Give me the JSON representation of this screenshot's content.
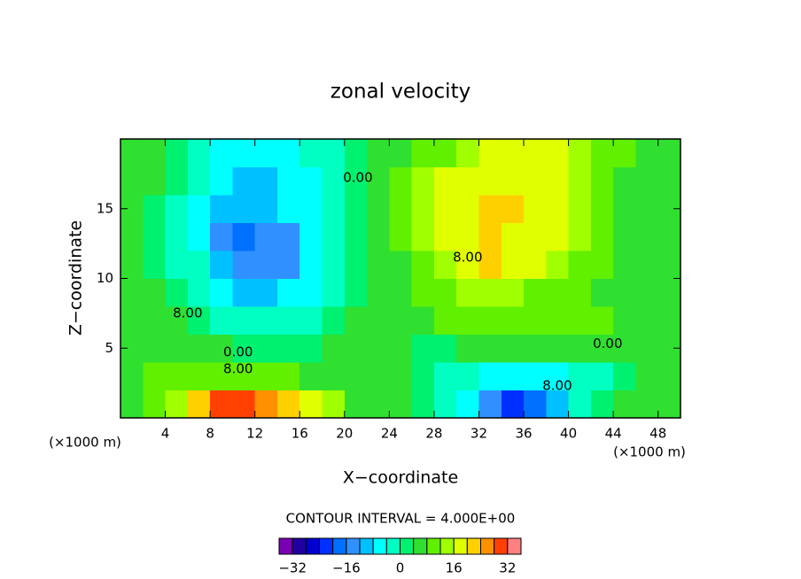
{
  "chart_data": {
    "type": "contour",
    "title": "zonal velocity",
    "xlabel": "X−coordinate",
    "ylabel": "Z−coordinate",
    "x_unit_label": "(×1000 m)",
    "xlim": [
      0,
      50
    ],
    "ylim": [
      0,
      20
    ],
    "xticks": [
      4,
      8,
      12,
      16,
      20,
      24,
      28,
      32,
      36,
      40,
      44,
      48
    ],
    "yticks": [
      5,
      10,
      15
    ],
    "x": [
      1,
      3,
      5,
      7,
      9,
      11,
      13,
      15,
      17,
      19,
      21,
      23,
      25,
      27,
      29,
      31,
      33,
      35,
      37,
      39,
      41,
      43,
      45,
      47,
      49
    ],
    "y": [
      1,
      3,
      5,
      7,
      9,
      11,
      13,
      15,
      17,
      19
    ],
    "z": [
      [
        6,
        10,
        14,
        22,
        28,
        30,
        24,
        22,
        18,
        12,
        6,
        4,
        4,
        2,
        -2,
        -8,
        -14,
        -24,
        -20,
        -10,
        -4,
        0,
        4,
        4,
        4
      ],
      [
        6,
        8,
        10,
        10,
        10,
        10,
        10,
        8,
        6,
        6,
        4,
        4,
        4,
        0,
        -2,
        -4,
        -6,
        -8,
        -8,
        -6,
        -4,
        -2,
        2,
        4,
        4
      ],
      [
        4,
        4,
        6,
        6,
        4,
        2,
        2,
        2,
        2,
        4,
        4,
        6,
        4,
        2,
        2,
        4,
        6,
        6,
        4,
        4,
        4,
        6,
        4,
        4,
        6
      ],
      [
        4,
        4,
        4,
        2,
        -2,
        -4,
        -4,
        -2,
        -2,
        0,
        4,
        4,
        6,
        6,
        8,
        8,
        8,
        8,
        8,
        8,
        8,
        8,
        6,
        6,
        6
      ],
      [
        4,
        4,
        2,
        -2,
        -6,
        -10,
        -10,
        -8,
        -6,
        -2,
        2,
        4,
        6,
        8,
        10,
        12,
        12,
        12,
        10,
        10,
        8,
        6,
        6,
        6,
        6
      ],
      [
        4,
        2,
        -2,
        -4,
        -10,
        -14,
        -14,
        -14,
        -8,
        -2,
        2,
        4,
        6,
        10,
        14,
        18,
        21,
        18,
        16,
        14,
        10,
        8,
        6,
        6,
        6
      ],
      [
        4,
        2,
        -2,
        -6,
        -14,
        -18,
        -16,
        -16,
        -8,
        -2,
        2,
        4,
        8,
        12,
        16,
        18,
        20,
        18,
        18,
        16,
        12,
        8,
        6,
        6,
        6
      ],
      [
        4,
        2,
        -2,
        -6,
        -10,
        -12,
        -12,
        -8,
        -6,
        -2,
        2,
        4,
        8,
        14,
        16,
        18,
        20,
        21,
        19,
        17,
        12,
        8,
        6,
        6,
        6
      ],
      [
        4,
        4,
        0,
        -4,
        -8,
        -10,
        -10,
        -8,
        -6,
        -2,
        2,
        4,
        8,
        12,
        16,
        18,
        18,
        18,
        18,
        16,
        12,
        8,
        6,
        6,
        6
      ],
      [
        4,
        4,
        2,
        -2,
        -6,
        -8,
        -8,
        -6,
        -4,
        -2,
        2,
        4,
        6,
        8,
        10,
        14,
        16,
        18,
        18,
        18,
        14,
        10,
        8,
        6,
        6
      ]
    ],
    "contour_labels": [
      {
        "label": "0.00",
        "x": 21.2,
        "y": 17.2
      },
      {
        "label": "8.00",
        "x": 31,
        "y": 11.5
      },
      {
        "label": "8.00",
        "x": 6,
        "y": 7.5
      },
      {
        "label": "0.00",
        "x": 10.5,
        "y": 4.7
      },
      {
        "label": "8.00",
        "x": 10.5,
        "y": 3.5
      },
      {
        "label": "0.00",
        "x": 43.5,
        "y": 5.3
      },
      {
        "label": "8.00",
        "x": 39,
        "y": 2.3
      }
    ],
    "contour_interval": "CONTOUR INTERVAL = 4.000E+00",
    "colorbar": {
      "levels": [
        -36,
        -32,
        -28,
        -24,
        -20,
        -16,
        -12,
        -8,
        -4,
        0,
        4,
        8,
        12,
        16,
        20,
        24,
        28,
        32,
        36
      ],
      "colors": [
        "#7a00b4",
        "#2000a0",
        "#0000d0",
        "#0030ff",
        "#0070ff",
        "#3090ff",
        "#00c0ff",
        "#00ffff",
        "#00ffc0",
        "#00f070",
        "#30e030",
        "#60f000",
        "#a0ff00",
        "#e0ff00",
        "#ffd000",
        "#ff9000",
        "#ff4000",
        "#ff8080"
      ],
      "ticks": [
        {
          "value": -32,
          "label": "−32"
        },
        {
          "value": -16,
          "label": "−16"
        },
        0,
        16,
        32
      ]
    }
  }
}
